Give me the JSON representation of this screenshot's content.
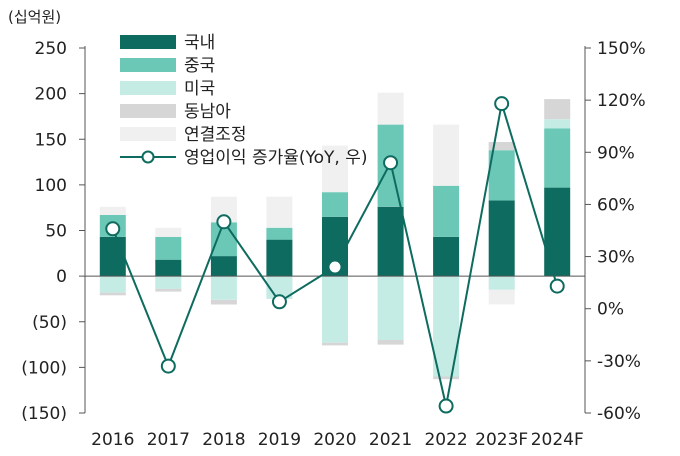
{
  "chart_data": {
    "type": "bar",
    "unit_label": "(십억원)",
    "categories": [
      "2016",
      "2017",
      "2018",
      "2019",
      "2020",
      "2021",
      "2022",
      "2023F",
      "2024F"
    ],
    "ylim": [
      -150,
      250
    ],
    "y_ticks": [
      "250",
      "200",
      "150",
      "100",
      "50",
      "0",
      "(50)",
      "(100)",
      "(150)"
    ],
    "y2lim": [
      -60,
      150
    ],
    "y2_ticks": [
      "150%",
      "120%",
      "90%",
      "60%",
      "30%",
      "0%",
      "-30%",
      "-60%"
    ],
    "series": [
      {
        "name": "국내",
        "kind": "bar",
        "color": "#0e6b5f",
        "values": [
          43,
          18,
          22,
          40,
          65,
          76,
          43,
          83,
          97
        ]
      },
      {
        "name": "중국",
        "kind": "bar",
        "color": "#6cc8b6",
        "values": [
          24,
          25,
          37,
          13,
          27,
          90,
          56,
          55,
          65
        ]
      },
      {
        "name": "미국",
        "kind": "bar",
        "color": "#c5ebe5",
        "values": [
          -18,
          -14,
          -26,
          -25,
          -73,
          -70,
          -110,
          -15,
          10
        ]
      },
      {
        "name": "동남아",
        "kind": "bar",
        "color": "#d6d6d6",
        "values": [
          -3,
          -3,
          -5,
          0,
          -3,
          -5,
          -3,
          9,
          22
        ]
      },
      {
        "name": "연결조정",
        "kind": "bar",
        "color": "#f0f0f0",
        "values": [
          9,
          10,
          28,
          34,
          51,
          35,
          67,
          -16,
          0
        ]
      },
      {
        "name": "영업이익 증가율(YoY, 우)",
        "kind": "line",
        "color": "#0e6b5f",
        "values": [
          46,
          -33,
          50,
          4,
          24,
          84,
          -56,
          118,
          13
        ]
      }
    ],
    "legend": "top-left",
    "grid": false
  }
}
